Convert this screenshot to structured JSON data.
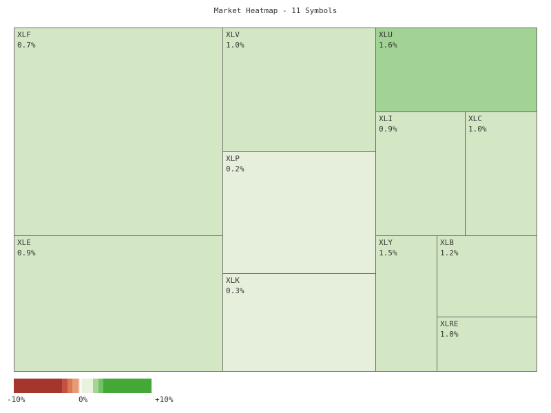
{
  "chart_data": {
    "type": "heatmap",
    "subtype": "treemap",
    "title": "Market Heatmap - 11 Symbols",
    "cells": [
      {
        "symbol": "XLF",
        "change": "0.7%",
        "value": 0.7,
        "color": "#d4e7c4"
      },
      {
        "symbol": "XLE",
        "change": "0.9%",
        "value": 0.9,
        "color": "#d4e7c4"
      },
      {
        "symbol": "XLV",
        "change": "1.0%",
        "value": 1.0,
        "color": "#d4e7c4"
      },
      {
        "symbol": "XLP",
        "change": "0.2%",
        "value": 0.2,
        "color": "#e6efdb"
      },
      {
        "symbol": "XLK",
        "change": "0.3%",
        "value": 0.3,
        "color": "#e6efdb"
      },
      {
        "symbol": "XLU",
        "change": "1.6%",
        "value": 1.6,
        "color": "#a3d394"
      },
      {
        "symbol": "XLI",
        "change": "0.9%",
        "value": 0.9,
        "color": "#d4e7c4"
      },
      {
        "symbol": "XLC",
        "change": "1.0%",
        "value": 1.0,
        "color": "#d4e7c4"
      },
      {
        "symbol": "XLY",
        "change": "1.5%",
        "value": 1.5,
        "color": "#d4e7c4"
      },
      {
        "symbol": "XLB",
        "change": "1.2%",
        "value": 1.2,
        "color": "#d4e7c4"
      },
      {
        "symbol": "XLRE",
        "change": "1.0%",
        "value": 1.0,
        "color": "#d4e7c4"
      }
    ],
    "legend": {
      "min_label": "-10%",
      "mid_label": "0%",
      "max_label": "+10%",
      "colors": [
        "#a5362d",
        "#c65040",
        "#d97a55",
        "#e79a76",
        "#f6e6da",
        "#e8f2dc",
        "#a5d494",
        "#74c165",
        "#44a836"
      ]
    }
  }
}
